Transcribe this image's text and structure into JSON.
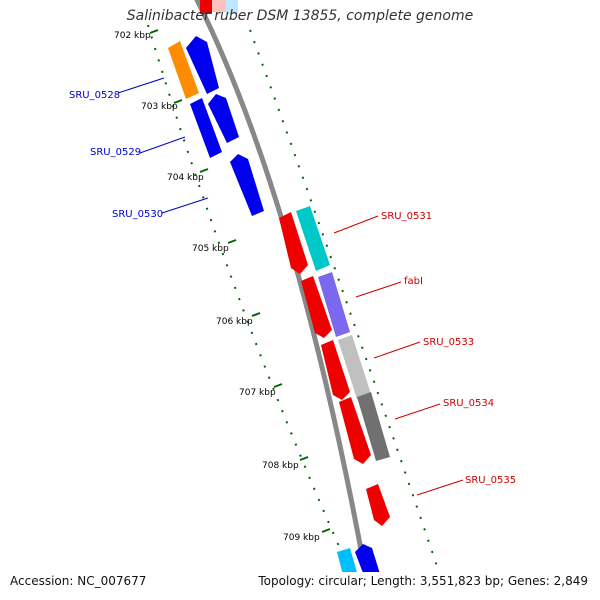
{
  "title": "Salinibacter ruber DSM 13855, complete genome",
  "footer": {
    "accession": "Accession: NC_007677",
    "summary": "Topology: circular; Length: 3,551,823 bp; Genes: 2,849"
  },
  "ticks": [
    "702 kbp",
    "703 kbp",
    "704 kbp",
    "705 kbp",
    "706 kbp",
    "707 kbp",
    "708 kbp",
    "709 kbp"
  ],
  "genes_left": [
    {
      "label": "SRU_0528",
      "color": "#0000cc"
    },
    {
      "label": "SRU_0529",
      "color": "#0000cc"
    },
    {
      "label": "SRU_0530",
      "color": "#0000cc"
    }
  ],
  "genes_right": [
    {
      "label": "SRU_0531",
      "color": "#cc0000"
    },
    {
      "label": "fabI",
      "color": "#cc0000"
    },
    {
      "label": "SRU_0533",
      "color": "#cc0000"
    },
    {
      "label": "SRU_0534",
      "color": "#cc0000"
    },
    {
      "label": "SRU_0535",
      "color": "#cc0000"
    }
  ],
  "colors": {
    "backbone": "#888888",
    "forward": "#0000ee",
    "reverse": "#ee0000",
    "tick": "#006600",
    "orange": "#ff8c00",
    "teal": "#00c8c8",
    "purple": "#7b68ee",
    "light_gray": "#c0c0c0",
    "dark_gray": "#707070",
    "light_blue": "#00bfff",
    "pink": "#ffc0c0"
  }
}
